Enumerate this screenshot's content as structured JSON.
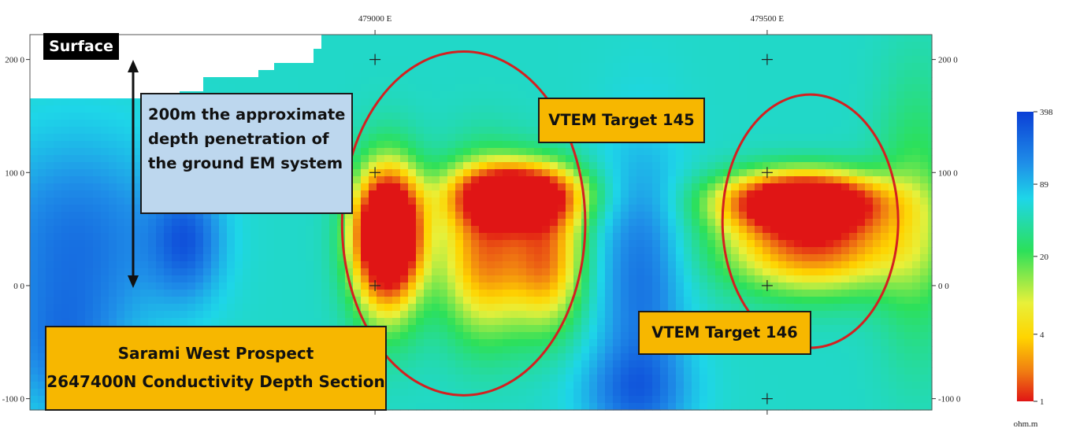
{
  "chart_data": {
    "type": "heatmap",
    "title": "Sarami West Prospect 2647400N Conductivity Depth Section",
    "xlabel": "",
    "ylabel": "",
    "x_ticks": [
      "479000 E",
      "479500 E"
    ],
    "x_tick_values": [
      479000,
      479500
    ],
    "y_ticks": [
      "200 0",
      "100 0",
      "0 0",
      "-100 0"
    ],
    "y_tick_values": [
      200,
      100,
      0,
      -100
    ],
    "xlim": [
      478560,
      479710
    ],
    "ylim": [
      -110,
      222
    ],
    "colorbar": {
      "unit": "ohm.m",
      "scale": "log",
      "tick_labels": [
        "398",
        "89",
        "20",
        "4",
        "1"
      ],
      "tick_values": [
        398,
        89,
        20,
        4,
        1
      ],
      "colors": [
        "#0b3fd6",
        "#1f8fe8",
        "#1ed6e8",
        "#2ce05a",
        "#e8f03a",
        "#ffd400",
        "#f07a12",
        "#e01515"
      ]
    },
    "surface_profile": [
      {
        "x": 478560,
        "y": 166
      },
      {
        "x": 478750,
        "y": 166
      },
      {
        "x": 478750,
        "y": 172
      },
      {
        "x": 478780,
        "y": 172
      },
      {
        "x": 478780,
        "y": 184
      },
      {
        "x": 478852,
        "y": 184
      },
      {
        "x": 478852,
        "y": 190
      },
      {
        "x": 478870,
        "y": 190
      },
      {
        "x": 478870,
        "y": 198
      },
      {
        "x": 478925,
        "y": 198
      },
      {
        "x": 478925,
        "y": 212
      },
      {
        "x": 478932,
        "y": 212
      },
      {
        "x": 478932,
        "y": 220
      },
      {
        "x": 479710,
        "y": 220
      }
    ],
    "anomalies": [
      {
        "name": "VTEM Target 145",
        "x": 479020,
        "y": 52,
        "resistivity": 1.5,
        "outline": {
          "cx": 479113,
          "cy": 55,
          "rx": 155,
          "ry": 152
        }
      },
      {
        "name": "VTEM Target 146",
        "x": 479550,
        "y": 68,
        "resistivity": 1.3,
        "outline": {
          "cx": 479555,
          "cy": 57,
          "rx": 112,
          "ry": 112
        }
      }
    ]
  },
  "labels": {
    "surface": "Surface",
    "depth_note": [
      "200m the approximate",
      "depth penetration of",
      "the ground EM system"
    ],
    "prospect_title": [
      "Sarami West Prospect",
      "2647400N Conductivity Depth Section"
    ],
    "target_145": "VTEM Target 145",
    "target_146": "VTEM Target 146"
  },
  "colors": {
    "target_outline": "#d42020",
    "callout_fill": "#f7b700",
    "note_fill": "#bdd7ee"
  }
}
